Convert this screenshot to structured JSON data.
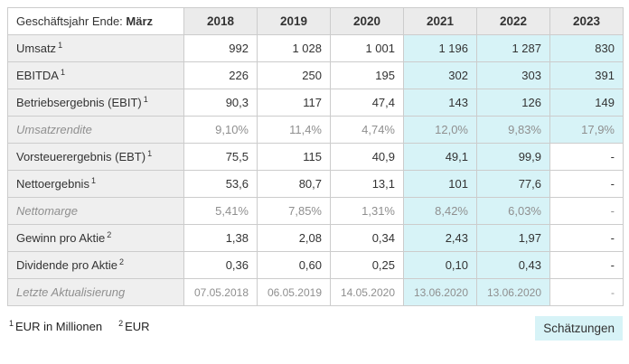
{
  "table": {
    "header": {
      "label_prefix": "Geschäftsjahr Ende:",
      "label_bold": "März",
      "years": [
        "2018",
        "2019",
        "2020",
        "2021",
        "2022",
        "2023"
      ]
    },
    "estimate_from_col": 3,
    "rows": [
      {
        "label": "Umsatz",
        "sup": "1",
        "muted": false,
        "small": false,
        "values": [
          "992",
          "1 028",
          "1 001",
          "1 196",
          "1 287",
          "830"
        ]
      },
      {
        "label": "EBITDA",
        "sup": "1",
        "muted": false,
        "small": false,
        "values": [
          "226",
          "250",
          "195",
          "302",
          "303",
          "391"
        ]
      },
      {
        "label": "Betriebsergebnis (EBIT)",
        "sup": "1",
        "muted": false,
        "small": false,
        "values": [
          "90,3",
          "117",
          "47,4",
          "143",
          "126",
          "149"
        ]
      },
      {
        "label": "Umsatzrendite",
        "sup": "",
        "muted": true,
        "small": false,
        "values": [
          "9,10%",
          "11,4%",
          "4,74%",
          "12,0%",
          "9,83%",
          "17,9%"
        ]
      },
      {
        "label": "Vorsteuerergebnis (EBT)",
        "sup": "1",
        "muted": false,
        "small": false,
        "values": [
          "75,5",
          "115",
          "40,9",
          "49,1",
          "99,9",
          "-"
        ]
      },
      {
        "label": "Nettoergebnis",
        "sup": "1",
        "muted": false,
        "small": false,
        "values": [
          "53,6",
          "80,7",
          "13,1",
          "101",
          "77,6",
          "-"
        ]
      },
      {
        "label": "Nettomarge",
        "sup": "",
        "muted": true,
        "small": false,
        "values": [
          "5,41%",
          "7,85%",
          "1,31%",
          "8,42%",
          "6,03%",
          "-"
        ]
      },
      {
        "label": "Gewinn pro Aktie",
        "sup": "2",
        "muted": false,
        "small": false,
        "values": [
          "1,38",
          "2,08",
          "0,34",
          "2,43",
          "1,97",
          "-"
        ]
      },
      {
        "label": "Dividende pro Aktie",
        "sup": "2",
        "muted": false,
        "small": false,
        "values": [
          "0,36",
          "0,60",
          "0,25",
          "0,10",
          "0,43",
          "-"
        ]
      },
      {
        "label": "Letzte Aktualisierung",
        "sup": "",
        "muted": true,
        "small": true,
        "values": [
          "07.05.2018",
          "06.05.2019",
          "14.05.2020",
          "13.06.2020",
          "13.06.2020",
          "-"
        ]
      }
    ]
  },
  "footnotes": [
    {
      "sup": "1",
      "text": "EUR in Millionen"
    },
    {
      "sup": "2",
      "text": "EUR"
    }
  ],
  "estimates_label": "Schätzungen",
  "colors": {
    "estimate_bg": "#d7f3f7",
    "header_bg": "#ebebeb",
    "label_bg": "#efefef",
    "border": "#cccccc",
    "text": "#333333",
    "muted_text": "#8f8f8f"
  }
}
